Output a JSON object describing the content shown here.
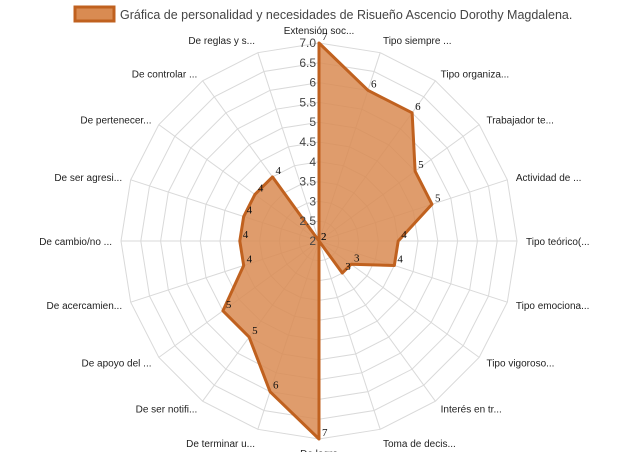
{
  "chart_data": {
    "type": "radar",
    "title": "Gráfica de personalidad y necesidades de Risueño Ascencio Dorothy Magdalena.",
    "categories": [
      "Extensión soc...",
      "Tipo siempre ...",
      "Tipo organiza...",
      "Trabajador te...",
      "Actividad de ...",
      "Tipo teórico(...",
      "Tipo emociona...",
      "Tipo vigoroso...",
      "Interés en tr...",
      "Toma de decis...",
      "De logro",
      "De terminar u...",
      "De ser notifi...",
      "De apoyo del ...",
      "De acercamien...",
      "De cambio/no ...",
      "De ser agresi...",
      "De pertenecer...",
      "De controlar ...",
      "De reglas y s..."
    ],
    "series": [
      {
        "name": "Gráfica de personalidad y necesidades de Risueño Ascencio Dorothy Magdalena.",
        "values": [
          7,
          6,
          6,
          5,
          5,
          4,
          4,
          3,
          3,
          2,
          7,
          6,
          5,
          5,
          4,
          4,
          4,
          4,
          4,
          2
        ],
        "labels": [
          "7",
          "6",
          "6",
          "5",
          "5",
          "4",
          "4",
          "3",
          "3",
          "2",
          "7",
          "6",
          "5",
          "5",
          "4",
          "4",
          "4",
          "4",
          "4",
          "2"
        ]
      }
    ],
    "rlim": [
      2,
      7
    ],
    "ticks": [
      "2",
      "2.5",
      "3",
      "3.5",
      "4",
      "4.5",
      "5",
      "5.5",
      "6",
      "6.5",
      "7.0"
    ],
    "grid": true,
    "legend_position": "top",
    "colors": {
      "fill": "#d98b52",
      "stroke": "#c0611f",
      "grid": "#d9d9d9"
    }
  }
}
